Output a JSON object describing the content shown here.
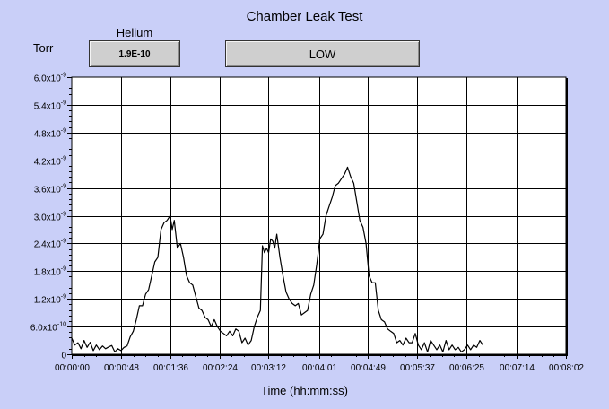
{
  "window": {
    "title": "Chamber Leak Test"
  },
  "readouts": {
    "unit_label": "Torr",
    "gas_label": "Helium",
    "gas_value": "1.9E-10",
    "status_value": "LOW"
  },
  "chart_data": {
    "type": "line",
    "title": "Chamber Leak Test",
    "xlabel": "Time (hh:mm:ss)",
    "ylabel": "Torr",
    "grid": true,
    "legend": "none",
    "xlim": [
      0,
      482
    ],
    "ylim": [
      0,
      6e-09
    ],
    "y_ticks": [
      {
        "value": 0,
        "label": "0"
      },
      {
        "value": 6e-10,
        "label": "6.0x10",
        "exp": "-10"
      },
      {
        "value": 1.2e-09,
        "label": "1.2x10",
        "exp": "-9"
      },
      {
        "value": 1.8e-09,
        "label": "1.8x10",
        "exp": "-9"
      },
      {
        "value": 2.4e-09,
        "label": "2.4x10",
        "exp": "-9"
      },
      {
        "value": 3e-09,
        "label": "3.0x10",
        "exp": "-9"
      },
      {
        "value": 3.6e-09,
        "label": "3.6x10",
        "exp": "-9"
      },
      {
        "value": 4.2e-09,
        "label": "4.2x10",
        "exp": "-9"
      },
      {
        "value": 4.8e-09,
        "label": "4.8x10",
        "exp": "-9"
      },
      {
        "value": 5.4e-09,
        "label": "5.4x10",
        "exp": "-9"
      },
      {
        "value": 6e-09,
        "label": "6.0x10",
        "exp": "-9"
      }
    ],
    "x_ticks": [
      {
        "value": 0,
        "label": "00:00:00"
      },
      {
        "value": 48,
        "label": "00:00:48"
      },
      {
        "value": 96,
        "label": "00:01:36"
      },
      {
        "value": 144,
        "label": "00:02:24"
      },
      {
        "value": 192,
        "label": "00:03:12"
      },
      {
        "value": 241,
        "label": "00:04:01"
      },
      {
        "value": 289,
        "label": "00:04:49"
      },
      {
        "value": 337,
        "label": "00:05:37"
      },
      {
        "value": 385,
        "label": "00:06:25"
      },
      {
        "value": 434,
        "label": "00:07:14"
      },
      {
        "value": 482,
        "label": "00:08:02"
      }
    ],
    "series": [
      {
        "color": "#000000",
        "points": [
          [
            0,
            3.5e-10
          ],
          [
            3,
            2e-10
          ],
          [
            6,
            2.5e-10
          ],
          [
            9,
            1.2e-10
          ],
          [
            12,
            3e-10
          ],
          [
            15,
            1.5e-10
          ],
          [
            18,
            2.6e-10
          ],
          [
            21,
            8e-11
          ],
          [
            24,
            2e-10
          ],
          [
            27,
            1e-10
          ],
          [
            30,
            1.8e-10
          ],
          [
            33,
            1.2e-10
          ],
          [
            36,
            1.6e-10
          ],
          [
            39,
            1.9e-10
          ],
          [
            42,
            5e-11
          ],
          [
            45,
            1.2e-10
          ],
          [
            48,
            8e-11
          ],
          [
            51,
            1.5e-10
          ],
          [
            54,
            1.8e-10
          ],
          [
            57,
            3.8e-10
          ],
          [
            60,
            5e-10
          ],
          [
            63,
            7.5e-10
          ],
          [
            66,
            1.05e-09
          ],
          [
            69,
            1.05e-09
          ],
          [
            72,
            1.3e-09
          ],
          [
            75,
            1.4e-09
          ],
          [
            78,
            1.7e-09
          ],
          [
            81,
            2e-09
          ],
          [
            84,
            2.1e-09
          ],
          [
            87,
            2.7e-09
          ],
          [
            90,
            2.85e-09
          ],
          [
            93,
            2.9e-09
          ],
          [
            96,
            3e-09
          ],
          [
            98,
            2.7e-09
          ],
          [
            100,
            2.9e-09
          ],
          [
            103,
            2.3e-09
          ],
          [
            106,
            2.4e-09
          ],
          [
            109,
            2.1e-09
          ],
          [
            112,
            1.7e-09
          ],
          [
            115,
            1.55e-09
          ],
          [
            118,
            1.5e-09
          ],
          [
            121,
            1.25e-09
          ],
          [
            124,
            1e-09
          ],
          [
            127,
            9.5e-10
          ],
          [
            130,
            8e-10
          ],
          [
            133,
            7.5e-10
          ],
          [
            136,
            6e-10
          ],
          [
            139,
            7.5e-10
          ],
          [
            142,
            6e-10
          ],
          [
            145,
            5e-10
          ],
          [
            148,
            4.5e-10
          ],
          [
            151,
            4e-10
          ],
          [
            154,
            5e-10
          ],
          [
            157,
            4e-10
          ],
          [
            160,
            5.5e-10
          ],
          [
            163,
            5e-10
          ],
          [
            166,
            2.5e-10
          ],
          [
            169,
            3.5e-10
          ],
          [
            172,
            2e-10
          ],
          [
            175,
            3e-10
          ],
          [
            178,
            6e-10
          ],
          [
            181,
            8e-10
          ],
          [
            184,
            9.5e-10
          ],
          [
            186,
            2.35e-09
          ],
          [
            188,
            2.2e-09
          ],
          [
            190,
            2.3e-09
          ],
          [
            192,
            2.2e-09
          ],
          [
            194,
            2.5e-09
          ],
          [
            196,
            2.45e-09
          ],
          [
            198,
            2.3e-09
          ],
          [
            200,
            2.6e-09
          ],
          [
            203,
            2.1e-09
          ],
          [
            206,
            1.7e-09
          ],
          [
            209,
            1.35e-09
          ],
          [
            212,
            1.2e-09
          ],
          [
            215,
            1.1e-09
          ],
          [
            218,
            1.05e-09
          ],
          [
            221,
            1.1e-09
          ],
          [
            224,
            8.5e-10
          ],
          [
            227,
            9e-10
          ],
          [
            230,
            9.5e-10
          ],
          [
            233,
            1.3e-09
          ],
          [
            236,
            1.5e-09
          ],
          [
            239,
            1.95e-09
          ],
          [
            242,
            2.5e-09
          ],
          [
            245,
            2.6e-09
          ],
          [
            248,
            3e-09
          ],
          [
            251,
            3.2e-09
          ],
          [
            254,
            3.4e-09
          ],
          [
            257,
            3.65e-09
          ],
          [
            260,
            3.7e-09
          ],
          [
            263,
            3.8e-09
          ],
          [
            266,
            3.9e-09
          ],
          [
            269,
            4.05e-09
          ],
          [
            272,
            3.85e-09
          ],
          [
            275,
            3.7e-09
          ],
          [
            278,
            3.3e-09
          ],
          [
            281,
            2.9e-09
          ],
          [
            284,
            2.75e-09
          ],
          [
            287,
            2.4e-09
          ],
          [
            290,
            1.7e-09
          ],
          [
            293,
            1.55e-09
          ],
          [
            296,
            1.55e-09
          ],
          [
            299,
            9.5e-10
          ],
          [
            302,
            7.5e-10
          ],
          [
            305,
            7e-10
          ],
          [
            308,
            5.5e-10
          ],
          [
            311,
            5e-10
          ],
          [
            314,
            4.5e-10
          ],
          [
            317,
            2.5e-10
          ],
          [
            320,
            3e-10
          ],
          [
            323,
            2e-10
          ],
          [
            326,
            3.5e-10
          ],
          [
            329,
            2.5e-10
          ],
          [
            332,
            2.5e-10
          ],
          [
            335,
            4.5e-10
          ],
          [
            338,
            2e-10
          ],
          [
            341,
            1e-10
          ],
          [
            344,
            2.5e-10
          ],
          [
            347,
            5e-11
          ],
          [
            350,
            3e-10
          ],
          [
            353,
            2e-10
          ],
          [
            356,
            1e-10
          ],
          [
            359,
            2e-10
          ],
          [
            362,
            5e-11
          ],
          [
            365,
            3e-10
          ],
          [
            368,
            1e-10
          ],
          [
            371,
            2e-10
          ],
          [
            374,
            1e-10
          ],
          [
            377,
            1.5e-10
          ],
          [
            380,
            5e-11
          ],
          [
            383,
            1e-10
          ],
          [
            386,
            2e-10
          ],
          [
            389,
            1e-10
          ],
          [
            392,
            2e-10
          ],
          [
            395,
            1.5e-10
          ],
          [
            398,
            3e-10
          ],
          [
            401,
            2e-10
          ]
        ]
      }
    ]
  }
}
